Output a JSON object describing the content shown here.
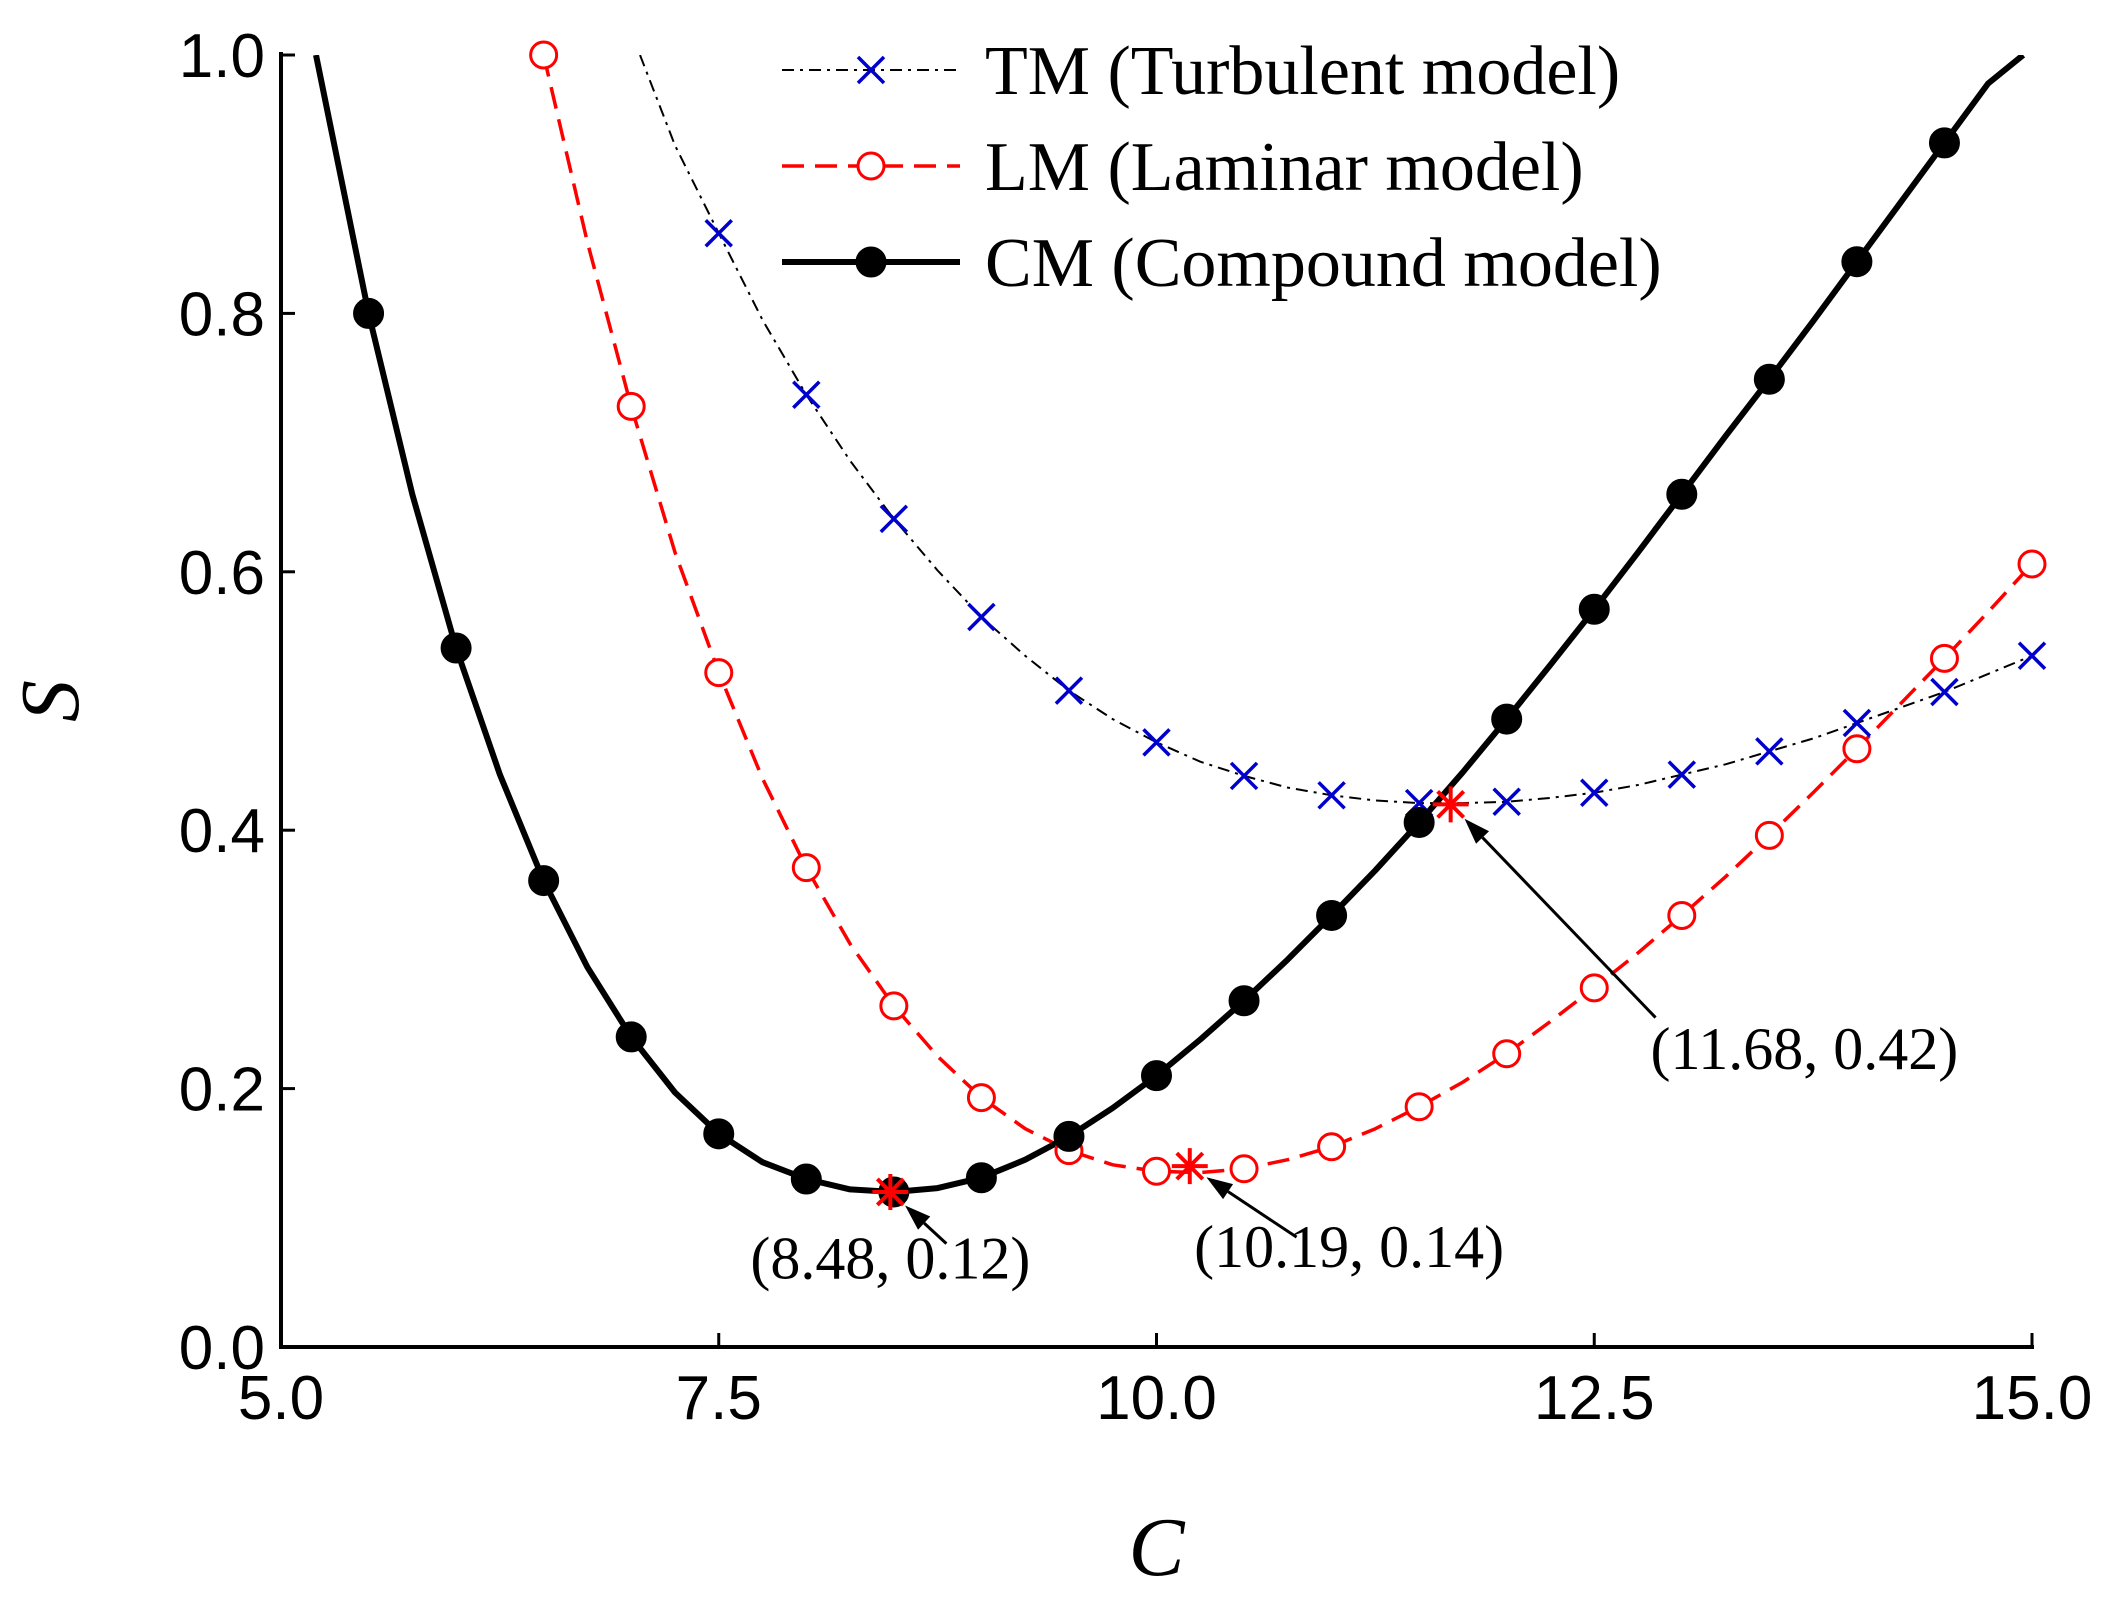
{
  "chart_data": {
    "type": "line",
    "title": "",
    "xlabel": "C",
    "ylabel": "S",
    "xlim": [
      5.0,
      15.0
    ],
    "ylim": [
      0.0,
      1.0
    ],
    "xticks": [
      5.0,
      7.5,
      10.0,
      12.5,
      15.0
    ],
    "xtick_labels": [
      "5.0",
      "7.5",
      "10.0",
      "12.5",
      "15.0"
    ],
    "yticks": [
      0.0,
      0.2,
      0.4,
      0.6,
      0.8,
      1.0
    ],
    "ytick_labels": [
      "0.0",
      "0.2",
      "0.4",
      "0.6",
      "0.8",
      "1.0"
    ],
    "grid": false,
    "legend_position": "top-right",
    "series": [
      {
        "name": "TM (Turbulent model)",
        "color": "#0000cc",
        "line_color": "#000000",
        "line_style": "dash-dot",
        "marker": "x",
        "curve": {
          "x": [
            7.05,
            7.25,
            7.5,
            7.75,
            8.0,
            8.25,
            8.5,
            8.75,
            9.0,
            9.25,
            9.5,
            9.75,
            10.0,
            10.25,
            10.5,
            10.75,
            11.0,
            11.25,
            11.5,
            11.75,
            12.0,
            12.25,
            12.5,
            12.75,
            13.0,
            13.25,
            13.5,
            13.75,
            14.0,
            14.25,
            14.5,
            14.75,
            15.0
          ],
          "y": [
            1.0,
            0.93,
            0.862,
            0.795,
            0.737,
            0.686,
            0.641,
            0.601,
            0.565,
            0.535,
            0.508,
            0.486,
            0.468,
            0.453,
            0.442,
            0.433,
            0.427,
            0.423,
            0.421,
            0.421,
            0.422,
            0.425,
            0.429,
            0.435,
            0.443,
            0.451,
            0.461,
            0.471,
            0.483,
            0.495,
            0.507,
            0.521,
            0.535
          ]
        },
        "x": [
          7.5,
          8.0,
          8.5,
          9.0,
          9.5,
          10.0,
          10.5,
          11.0,
          11.5,
          12.0,
          12.5,
          13.0,
          13.5,
          14.0,
          14.5,
          15.0
        ],
        "y": [
          0.862,
          0.737,
          0.641,
          0.565,
          0.508,
          0.468,
          0.442,
          0.427,
          0.421,
          0.422,
          0.429,
          0.443,
          0.461,
          0.483,
          0.507,
          0.535
        ]
      },
      {
        "name": "LM (Laminar model)",
        "color": "#ff0000",
        "line_color": "#ff0000",
        "line_style": "dashed",
        "marker": "open-circle",
        "curve": {
          "x": [
            6.5,
            6.75,
            7.0,
            7.25,
            7.5,
            7.75,
            8.0,
            8.25,
            8.5,
            8.75,
            9.0,
            9.25,
            9.5,
            9.75,
            10.0,
            10.25,
            10.5,
            10.75,
            11.0,
            11.25,
            11.5,
            11.75,
            12.0,
            12.25,
            12.5,
            12.75,
            13.0,
            13.25,
            13.5,
            13.75,
            14.0,
            14.25,
            14.5,
            14.75,
            15.0
          ],
          "y": [
            1.0,
            0.855,
            0.728,
            0.615,
            0.522,
            0.44,
            0.371,
            0.312,
            0.264,
            0.225,
            0.193,
            0.169,
            0.152,
            0.141,
            0.136,
            0.135,
            0.138,
            0.145,
            0.155,
            0.169,
            0.186,
            0.205,
            0.227,
            0.252,
            0.278,
            0.305,
            0.334,
            0.364,
            0.396,
            0.429,
            0.463,
            0.498,
            0.533,
            0.569,
            0.606
          ]
        },
        "x": [
          6.5,
          7.0,
          7.5,
          8.0,
          8.5,
          9.0,
          9.5,
          10.0,
          10.5,
          11.0,
          11.5,
          12.0,
          12.5,
          13.0,
          13.5,
          14.0,
          14.5,
          15.0
        ],
        "y": [
          1.0,
          0.728,
          0.522,
          0.371,
          0.264,
          0.193,
          0.152,
          0.136,
          0.138,
          0.155,
          0.186,
          0.227,
          0.278,
          0.334,
          0.396,
          0.463,
          0.533,
          0.606
        ]
      },
      {
        "name": "CM (Compound model)",
        "color": "#000000",
        "line_color": "#000000",
        "line_style": "solid",
        "marker": "filled-circle",
        "curve": {
          "x": [
            5.2,
            5.35,
            5.5,
            5.75,
            6.0,
            6.25,
            6.5,
            6.75,
            7.0,
            7.25,
            7.5,
            7.75,
            8.0,
            8.25,
            8.5,
            8.75,
            9.0,
            9.25,
            9.5,
            9.75,
            10.0,
            10.25,
            10.5,
            10.75,
            11.0,
            11.25,
            11.5,
            11.75,
            12.0,
            12.25,
            12.5,
            12.75,
            13.0,
            13.25,
            13.5,
            13.75,
            14.0,
            14.25,
            14.5,
            14.75,
            14.95
          ],
          "y": [
            1.0,
            0.9,
            0.8,
            0.66,
            0.541,
            0.443,
            0.361,
            0.294,
            0.24,
            0.197,
            0.165,
            0.143,
            0.13,
            0.122,
            0.12,
            0.123,
            0.131,
            0.145,
            0.163,
            0.185,
            0.21,
            0.238,
            0.268,
            0.3,
            0.334,
            0.369,
            0.406,
            0.445,
            0.486,
            0.528,
            0.571,
            0.615,
            0.66,
            0.705,
            0.749,
            0.794,
            0.84,
            0.886,
            0.932,
            0.978,
            1.0
          ]
        },
        "x": [
          5.5,
          6.0,
          6.5,
          7.0,
          7.5,
          8.0,
          8.5,
          9.0,
          9.5,
          10.0,
          10.5,
          11.0,
          11.5,
          12.0,
          12.5,
          13.0,
          13.5,
          14.0,
          14.5
        ],
        "y": [
          0.8,
          0.541,
          0.361,
          0.24,
          0.165,
          0.13,
          0.12,
          0.131,
          0.163,
          0.21,
          0.268,
          0.334,
          0.406,
          0.486,
          0.571,
          0.66,
          0.749,
          0.84,
          0.932
        ]
      }
    ],
    "annotations": [
      {
        "text": "(8.48, 0.12)",
        "point": [
          8.48,
          0.12
        ],
        "label_anchor": [
          8.48,
          0.053
        ],
        "arrow_from": [
          8.8,
          0.08
        ]
      },
      {
        "text": "(10.19, 0.14)",
        "point": [
          10.19,
          0.14
        ],
        "label_anchor": [
          11.1,
          0.062
        ],
        "arrow_from": [
          10.8,
          0.085
        ]
      },
      {
        "text": "(11.68, 0.42)",
        "point": [
          11.68,
          0.42
        ],
        "label_anchor": [
          13.7,
          0.215
        ],
        "arrow_from": [
          12.85,
          0.255
        ]
      }
    ],
    "highlight_marker": {
      "shape": "asterisk",
      "color": "#ff0000"
    }
  }
}
